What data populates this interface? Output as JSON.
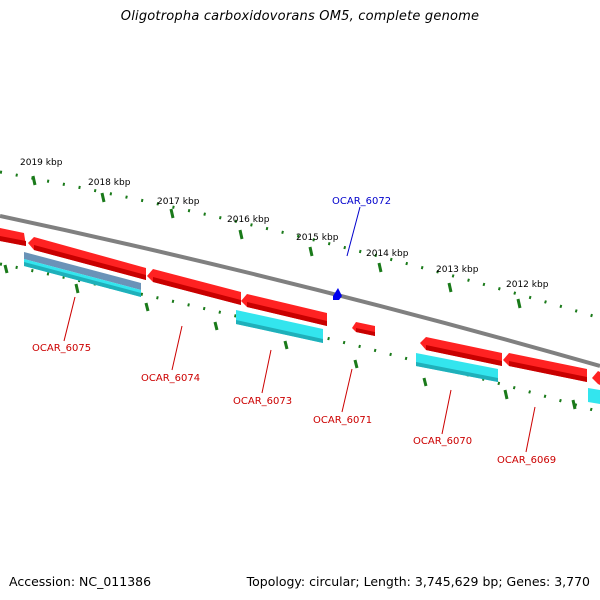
{
  "title": "Oligotropha carboxidovorans OM5, complete genome",
  "footer": {
    "accession": "Accession: NC_011386",
    "topology": "Topology: circular; Length: 3,745,629 bp; Genes: 3,770"
  },
  "scale_labels": [
    "2019 kbp",
    "2018 kbp",
    "2017 kbp",
    "2016 kbp",
    "2015 kbp",
    "2014 kbp",
    "2013 kbp",
    "2012 kbp"
  ],
  "gene_labels": [
    {
      "text": "OCAR_6072",
      "color": "#0000cc"
    },
    {
      "text": "OCAR_6075",
      "color": "#cc0000"
    },
    {
      "text": "OCAR_6074",
      "color": "#cc0000"
    },
    {
      "text": "OCAR_6073",
      "color": "#cc0000"
    },
    {
      "text": "OCAR_6071",
      "color": "#cc0000"
    },
    {
      "text": "OCAR_6070",
      "color": "#cc0000"
    },
    {
      "text": "OCAR_6069",
      "color": "#cc0000"
    }
  ],
  "colors": {
    "backbone": "#808080",
    "gene_red": "#ee0000",
    "rna_cyan": "#33e5ee",
    "rna_steel": "#5f8cb0",
    "tick_green": "#1a7a1a",
    "marker_blue": "#0000ee"
  }
}
